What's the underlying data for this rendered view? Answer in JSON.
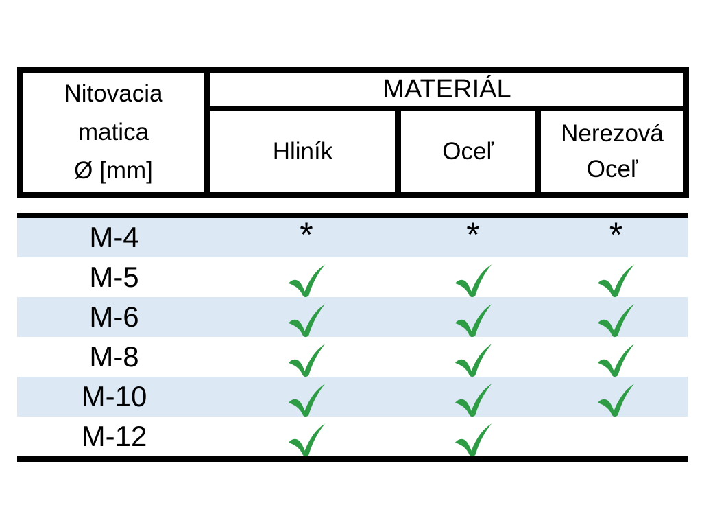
{
  "header": {
    "corner_lines": [
      "Nitovacia",
      "matica",
      "Ø [mm]"
    ],
    "material_title": "MATERIÁL",
    "columns": [
      "Hliník",
      "Oceľ",
      "Nerezová Oceľ"
    ]
  },
  "rows": [
    {
      "size": "M-4",
      "marks": [
        "asterisk",
        "asterisk",
        "asterisk"
      ]
    },
    {
      "size": "M-5",
      "marks": [
        "check",
        "check",
        "check"
      ]
    },
    {
      "size": "M-6",
      "marks": [
        "check",
        "check",
        "check"
      ]
    },
    {
      "size": "M-8",
      "marks": [
        "check",
        "check",
        "check"
      ]
    },
    {
      "size": "M-10",
      "marks": [
        "check",
        "check",
        "check"
      ]
    },
    {
      "size": "M-12",
      "marks": [
        "check",
        "check",
        "none"
      ]
    }
  ],
  "symbols": {
    "asterisk": "*"
  },
  "colors": {
    "check_green": "#2E9B45",
    "alt_row_blue": "#DCE9F5",
    "border_black": "#000000"
  }
}
